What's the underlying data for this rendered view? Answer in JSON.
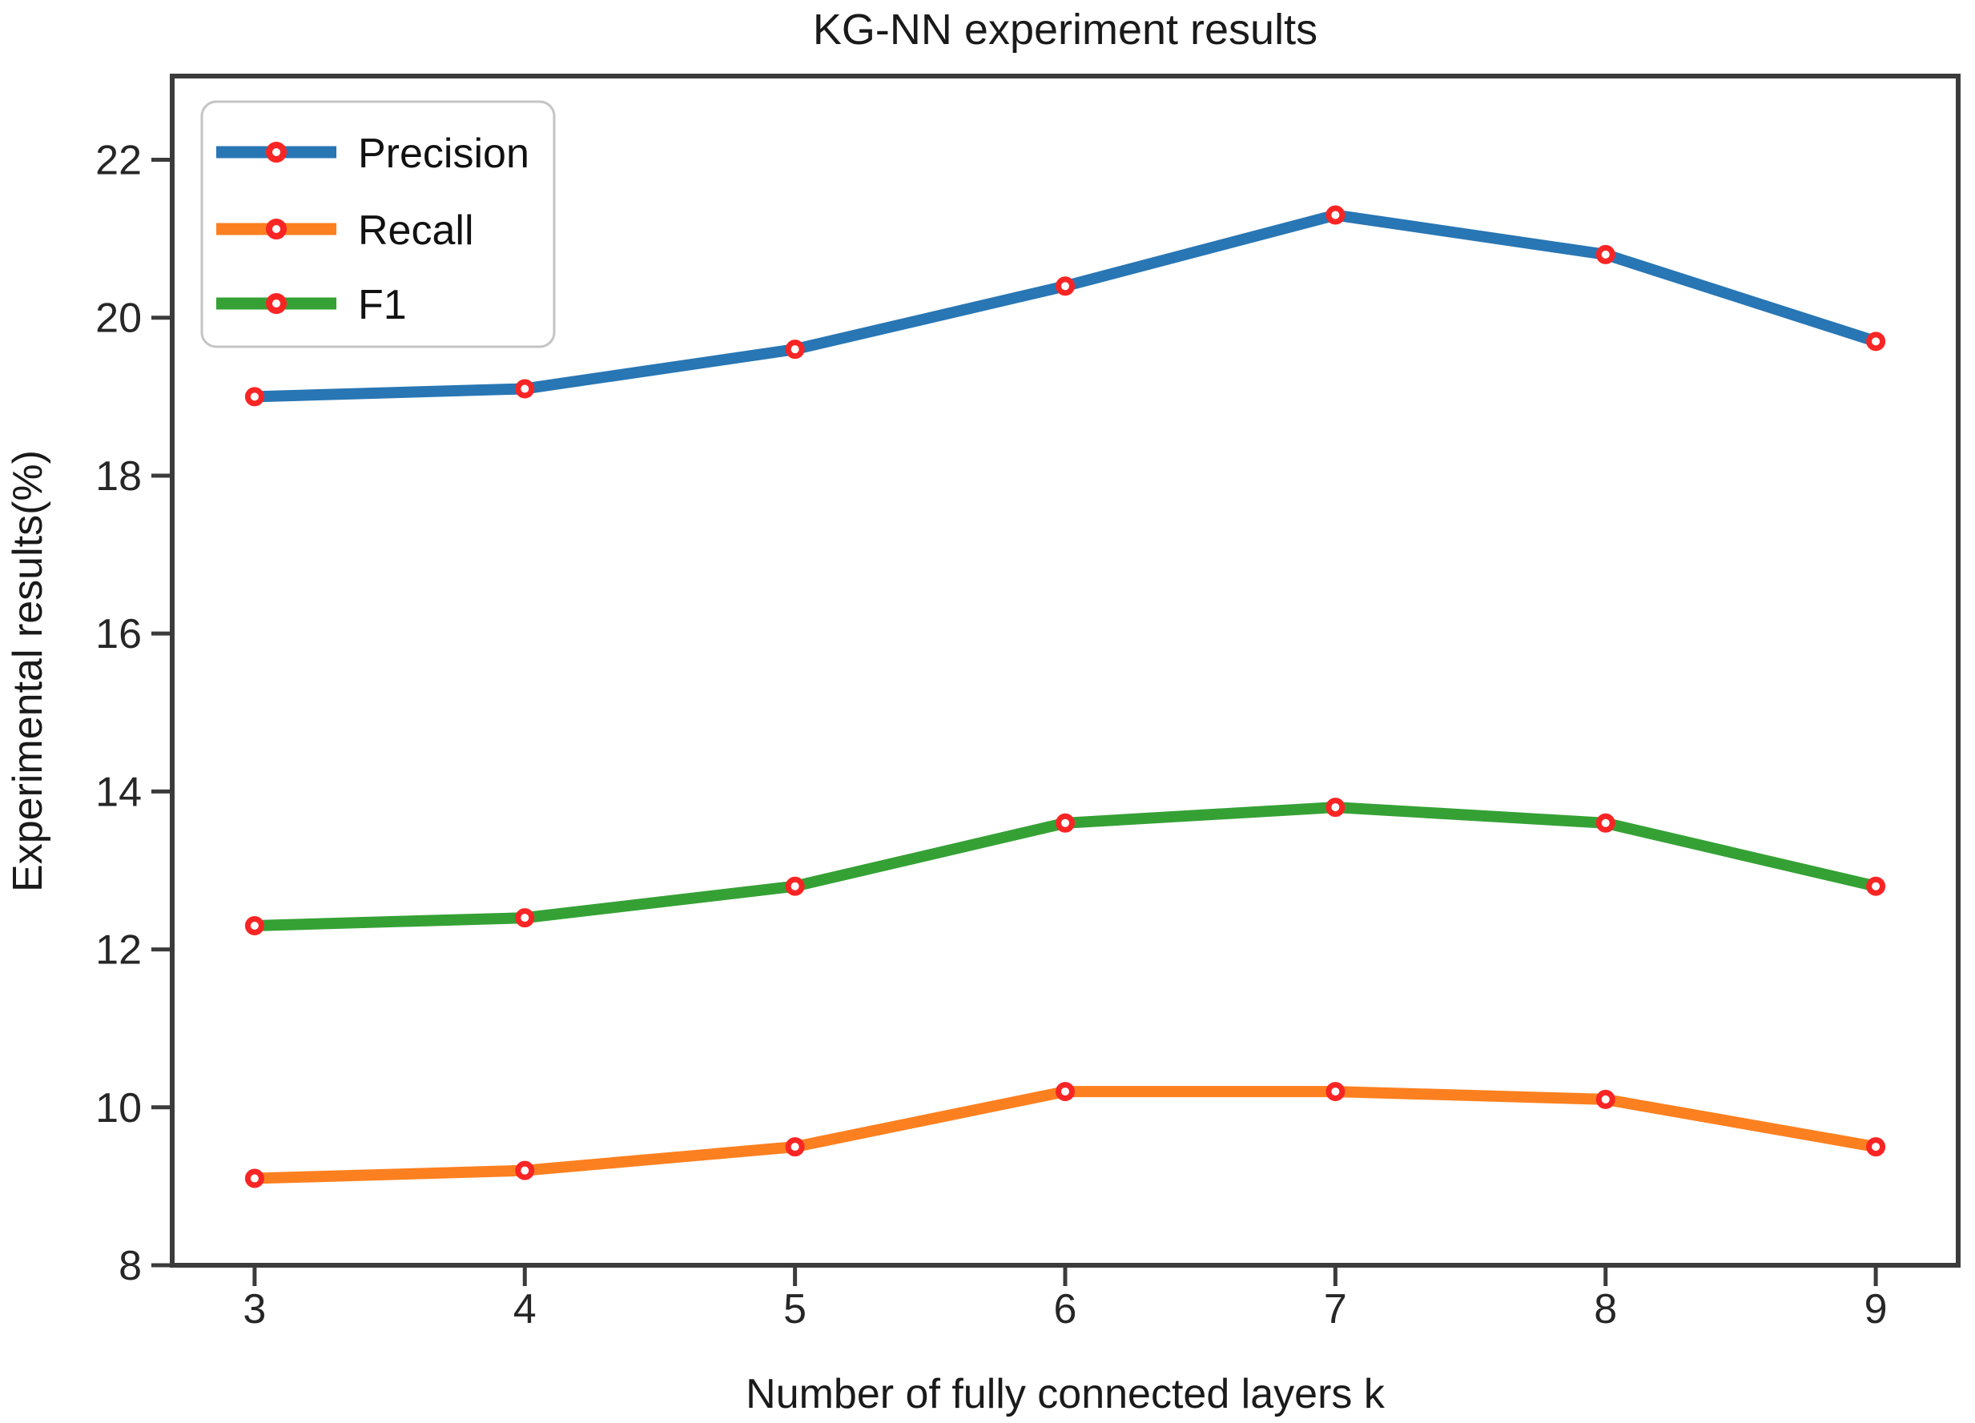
{
  "chart_data": {
    "type": "line",
    "title": "KG-NN experiment results",
    "xlabel": "Number of fully connected layers k",
    "ylabel": "Experimental results(%)",
    "x": [
      3,
      4,
      5,
      6,
      7,
      8,
      9
    ],
    "xticks": [
      "3",
      "4",
      "5",
      "6",
      "7",
      "8",
      "9"
    ],
    "yticks": [
      "8",
      "10",
      "12",
      "14",
      "16",
      "18",
      "20",
      "22"
    ],
    "ytick_values": [
      8,
      10,
      12,
      14,
      16,
      18,
      20,
      22
    ],
    "xlim": [
      2.695,
      9.305
    ],
    "ylim": [
      8,
      23.06
    ],
    "grid": false,
    "legend_position": "upper-left",
    "series": [
      {
        "name": "Precision",
        "color": "#2876b4",
        "values": [
          19.0,
          19.1,
          19.6,
          20.4,
          21.3,
          20.8,
          19.7
        ]
      },
      {
        "name": "Recall",
        "color": "#fd8020",
        "values": [
          9.1,
          9.2,
          9.5,
          10.2,
          10.2,
          10.1,
          9.5
        ]
      },
      {
        "name": "F1",
        "color": "#35a135",
        "values": [
          12.3,
          12.4,
          12.8,
          13.6,
          13.8,
          13.6,
          12.8
        ]
      }
    ],
    "marker": {
      "shape": "ring",
      "edge_color": "#f92525",
      "fill_color": "#ffffff"
    },
    "axis_color": "#3b3b3b"
  }
}
